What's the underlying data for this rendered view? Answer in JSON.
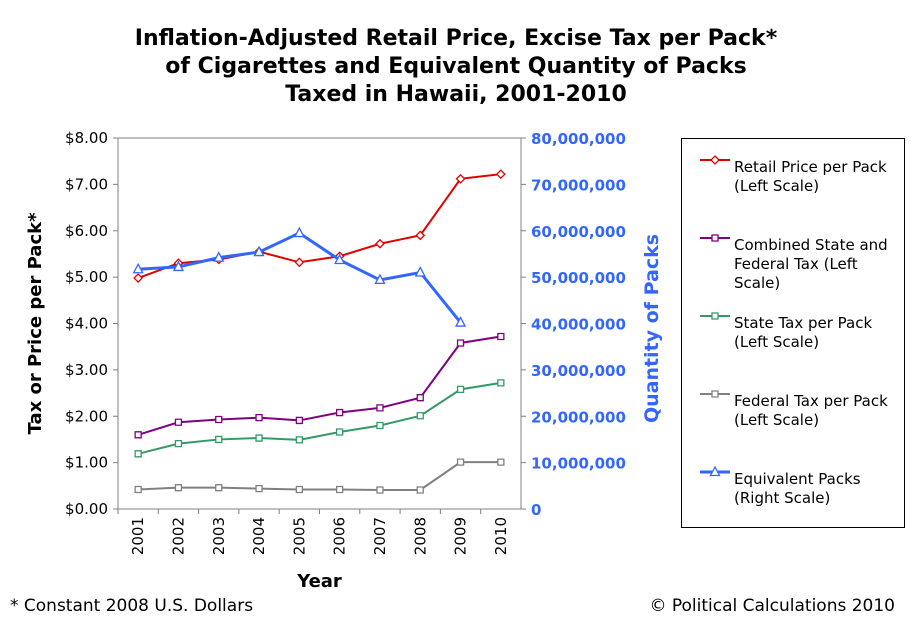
{
  "chart_data": {
    "type": "line",
    "title": [
      "Inflation-Adjusted Retail Price, Excise Tax per Pack*",
      "of Cigarettes and Equivalent Quantity of Packs",
      "Taxed in Hawaii, 2001-2010"
    ],
    "xlabel": "Year",
    "ylabel": "Tax or Price per Pack*",
    "y2label": "Quantity of Packs",
    "footnote": "* Constant 2008 U.S. Dollars",
    "credit": "© Political Calculations 2010",
    "categories": [
      "2001",
      "2002",
      "2003",
      "2004",
      "2005",
      "2006",
      "2007",
      "2008",
      "2009",
      "2010"
    ],
    "ylim": [
      0,
      8
    ],
    "yticks": [
      {
        "value": 0,
        "label": "$0.00"
      },
      {
        "value": 1,
        "label": "$1.00"
      },
      {
        "value": 2,
        "label": "$2.00"
      },
      {
        "value": 3,
        "label": "$3.00"
      },
      {
        "value": 4,
        "label": "$4.00"
      },
      {
        "value": 5,
        "label": "$5.00"
      },
      {
        "value": 6,
        "label": "$6.00"
      },
      {
        "value": 7,
        "label": "$7.00"
      },
      {
        "value": 8,
        "label": "$8.00"
      }
    ],
    "y2lim": [
      0,
      80000000
    ],
    "y2ticks": [
      0,
      {
        "value": 10000000,
        "label": "10,000,000"
      },
      {
        "value": 20000000,
        "label": "20,000,000"
      },
      {
        "value": 30000000,
        "label": "30,000,000"
      },
      {
        "value": 40000000,
        "label": "40,000,000"
      },
      {
        "value": 50000000,
        "label": "50,000,000"
      },
      {
        "value": 60000000,
        "label": "60,000,000"
      },
      {
        "value": 70000000,
        "label": "70,000,000"
      },
      {
        "value": 80000000,
        "label": "80,000,000"
      }
    ],
    "y2color": "#3366ff",
    "series": [
      {
        "name": "Retail Price per Pack (Left Scale)",
        "color": "#e00000",
        "marker": "diamond",
        "values": [
          4.98,
          5.3,
          5.38,
          5.55,
          5.32,
          5.45,
          5.72,
          5.9,
          7.12,
          7.22
        ]
      },
      {
        "name": "Combined State and Federal Tax (Left Scale)",
        "color": "#800080",
        "marker": "square",
        "values": [
          1.6,
          1.87,
          1.93,
          1.97,
          1.91,
          2.08,
          2.18,
          2.4,
          3.58,
          3.72
        ]
      },
      {
        "name": "State Tax per Pack (Left Scale)",
        "color": "#339966",
        "marker": "square",
        "values": [
          1.19,
          1.41,
          1.5,
          1.53,
          1.49,
          1.66,
          1.8,
          2.01,
          2.58,
          2.72
        ]
      },
      {
        "name": "Federal Tax per Pack (Left Scale)",
        "color": "#808080",
        "marker": "square",
        "values": [
          0.42,
          0.46,
          0.46,
          0.44,
          0.42,
          0.42,
          0.41,
          0.41,
          1.01,
          1.01
        ]
      },
      {
        "name": "Equivalent Packs (Right Scale)",
        "color": "#3366ff",
        "marker": "triangle",
        "axis": "y2",
        "width": 3,
        "values": [
          51700000,
          52200000,
          54200000,
          55400000,
          59500000,
          53700000,
          49400000,
          51000000,
          40200000,
          null
        ]
      }
    ]
  }
}
